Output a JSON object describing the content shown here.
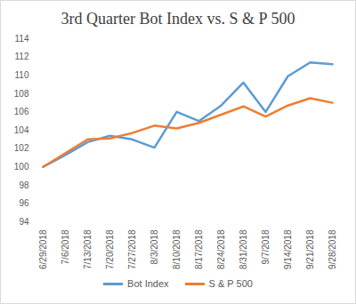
{
  "chart_data": {
    "type": "line",
    "title": "3rd Quarter Bot Index vs. S & P 500",
    "categories": [
      "6/29/2018",
      "7/6/2018",
      "7/13/2018",
      "7/20/2018",
      "7/27/2018",
      "8/3/2018",
      "8/10/2018",
      "8/17/2018",
      "8/24/2018",
      "8/31/2018",
      "9/7/2018",
      "9/14/2018",
      "9/21/2018",
      "9/28/2018"
    ],
    "series": [
      {
        "name": "Bot Index",
        "color": "#5b9bd5",
        "values": [
          100,
          101.3,
          102.7,
          103.4,
          103.0,
          102.1,
          106.0,
          105.0,
          106.7,
          109.2,
          106.0,
          109.9,
          111.4,
          111.2
        ]
      },
      {
        "name": "S & P 500",
        "color": "#ed7d31",
        "values": [
          100,
          101.5,
          103.0,
          103.1,
          103.7,
          104.5,
          104.2,
          104.8,
          105.7,
          106.6,
          105.5,
          106.7,
          107.5,
          107.0
        ]
      }
    ],
    "ylim": [
      94,
      114
    ],
    "yticks": [
      94,
      96,
      98,
      100,
      102,
      104,
      106,
      108,
      110,
      112,
      114
    ],
    "grid": false,
    "legend": "bottom"
  }
}
